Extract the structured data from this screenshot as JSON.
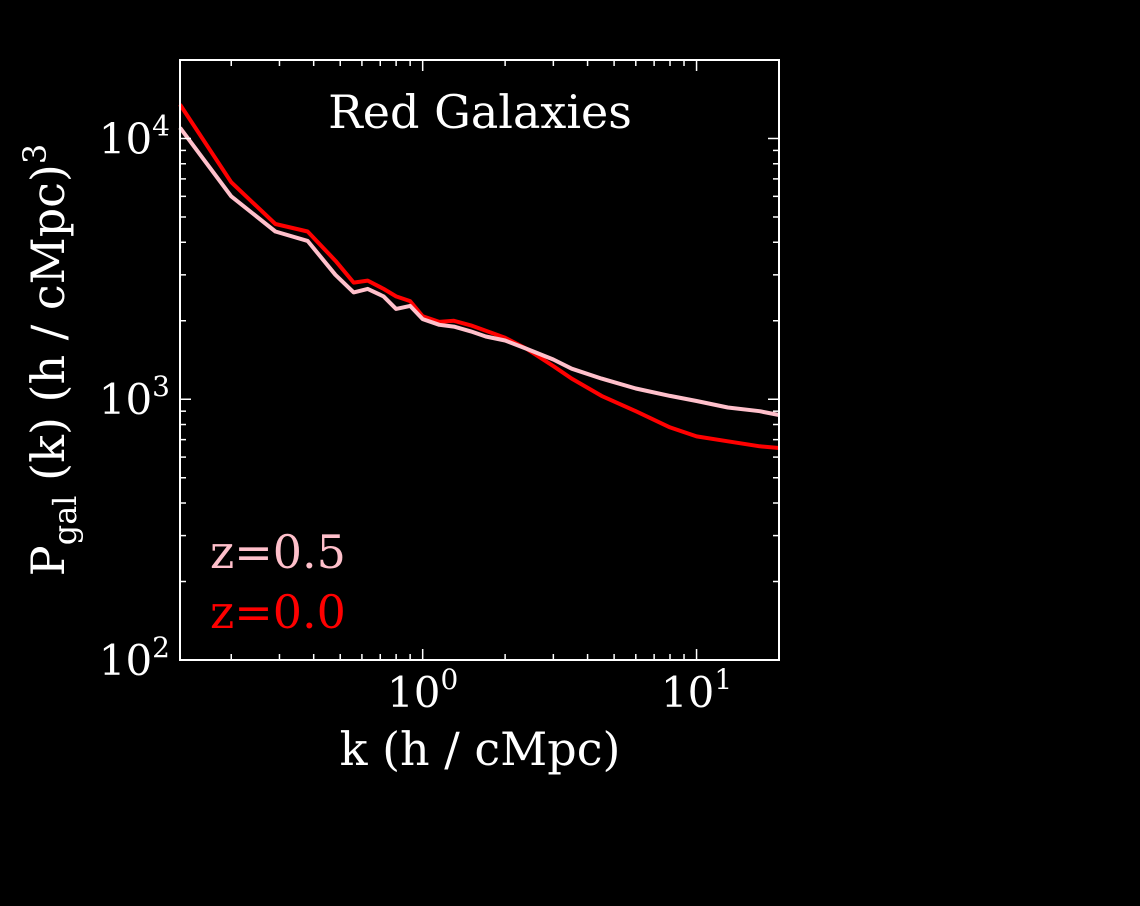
{
  "colors": {
    "background": "#000000",
    "axes": "#ffffff",
    "series_z05": "#ffc0cb",
    "series_z00": "#ff0000"
  },
  "chart_data": {
    "type": "line",
    "title": "Red Galaxies",
    "xlabel": {
      "main": "k (h / cMpc)"
    },
    "ylabel": {
      "main": "P",
      "sub": "gal",
      "rest": " (k) (h / cMpc)",
      "sup": "3"
    },
    "xscale": "log",
    "yscale": "log",
    "xlim": [
      0.13,
      20
    ],
    "ylim": [
      100,
      20000
    ],
    "xticks": [
      {
        "base": "10",
        "exp": "0",
        "value": 1
      },
      {
        "base": "10",
        "exp": "1",
        "value": 10
      }
    ],
    "yticks": [
      {
        "base": "10",
        "exp": "2",
        "value": 100
      },
      {
        "base": "10",
        "exp": "3",
        "value": 1000
      },
      {
        "base": "10",
        "exp": "4",
        "value": 10000
      }
    ],
    "grid": false,
    "legend": {
      "placement": "bottom-left",
      "style": "text labels colored by series"
    },
    "series": [
      {
        "name": "z=0.5",
        "color": "#ffc0cb",
        "x": [
          0.13,
          0.2,
          0.29,
          0.38,
          0.48,
          0.56,
          0.63,
          0.72,
          0.8,
          0.9,
          1.0,
          1.15,
          1.3,
          1.5,
          1.7,
          2.0,
          2.4,
          3.0,
          3.5,
          4.5,
          6.0,
          8.0,
          10.0,
          13.0,
          17.0,
          20.0
        ],
        "y": [
          11000,
          6000,
          4400,
          4050,
          3000,
          2570,
          2650,
          2480,
          2220,
          2280,
          2030,
          1930,
          1900,
          1820,
          1740,
          1680,
          1560,
          1420,
          1310,
          1200,
          1100,
          1030,
          985,
          930,
          900,
          870
        ]
      },
      {
        "name": "z=0.0",
        "color": "#ff0000",
        "x": [
          0.13,
          0.2,
          0.29,
          0.38,
          0.48,
          0.56,
          0.63,
          0.72,
          0.8,
          0.9,
          1.0,
          1.15,
          1.3,
          1.5,
          1.7,
          2.0,
          2.4,
          3.0,
          3.5,
          4.5,
          6.0,
          8.0,
          10.0,
          13.0,
          17.0,
          20.0
        ],
        "y": [
          13500,
          6800,
          4700,
          4400,
          3400,
          2800,
          2850,
          2650,
          2480,
          2380,
          2080,
          1980,
          2000,
          1920,
          1830,
          1720,
          1560,
          1340,
          1200,
          1030,
          900,
          780,
          720,
          690,
          660,
          650
        ]
      }
    ],
    "annotations": [
      {
        "text": "z=0.5",
        "color": "#ffc0cb"
      },
      {
        "text": "z=0.0",
        "color": "#ff0000"
      }
    ]
  }
}
